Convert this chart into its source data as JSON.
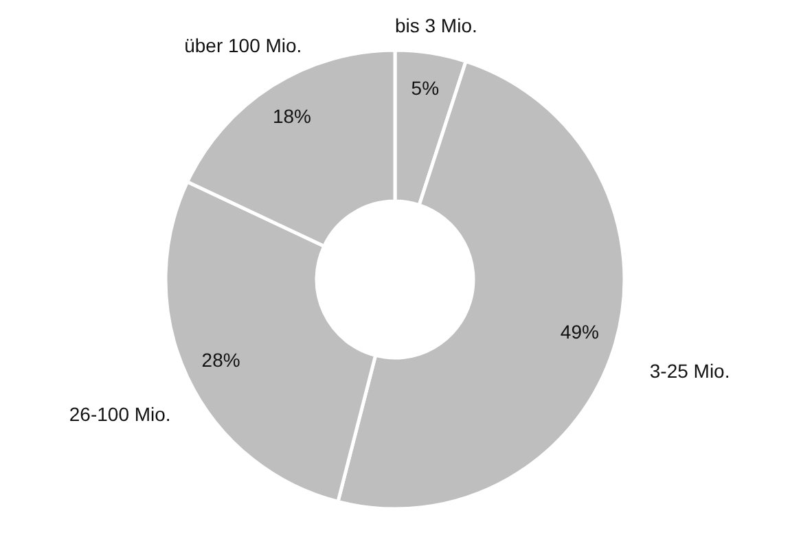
{
  "chart_data": {
    "type": "donut",
    "categories": [
      "bis 3 Mio.",
      "3-25 Mio.",
      "26-100 Mio.",
      "über 100 Mio."
    ],
    "values": [
      5,
      49,
      28,
      18
    ],
    "value_labels": [
      "5%",
      "49%",
      "28%",
      "18%"
    ],
    "colors": [
      "#bebebe",
      "#bebebe",
      "#bebebe",
      "#bebebe"
    ]
  }
}
